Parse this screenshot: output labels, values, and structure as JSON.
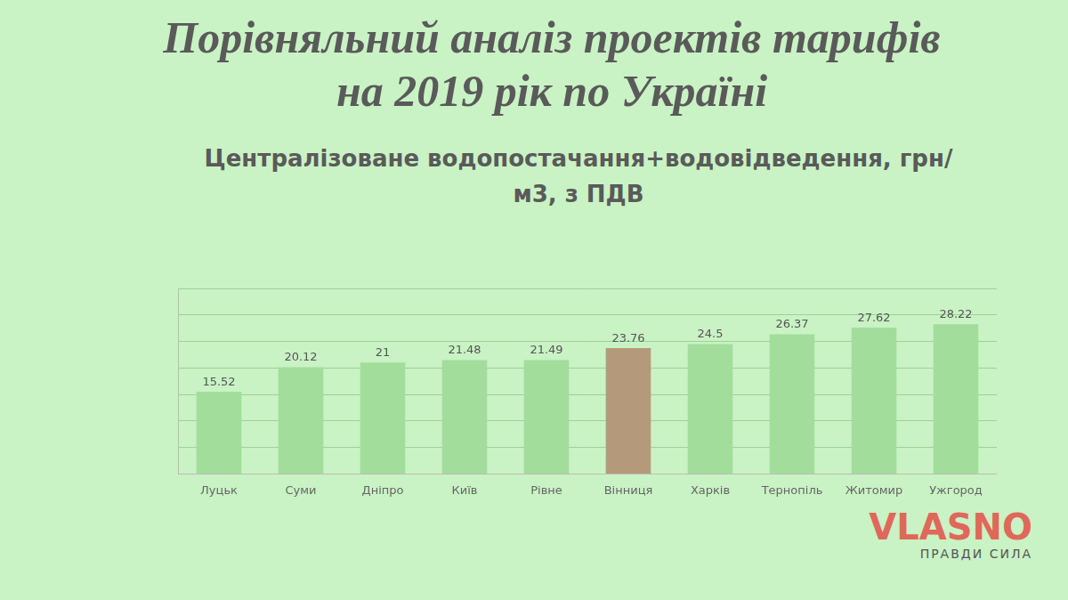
{
  "chart_data": {
    "type": "bar",
    "title": "Порівняльний аналіз проектів тарифів на 2019 рік по Україні",
    "subtitle": "Централізоване водопостачання+водовідведення, грн/м3, з ПДВ",
    "categories": [
      "Луцьк",
      "Суми",
      "Дніпро",
      "Київ",
      "Рівне",
      "Вінниця",
      "Харків",
      "Тернопіль",
      "Житомир",
      "Ужгород"
    ],
    "values": [
      15.52,
      20.12,
      21,
      21.48,
      21.49,
      23.76,
      24.5,
      26.37,
      27.62,
      28.22
    ],
    "colors": [
      "#a3dd9c",
      "#a3dd9c",
      "#a3dd9c",
      "#a3dd9c",
      "#a3dd9c",
      "#b49a7a",
      "#a3dd9c",
      "#a3dd9c",
      "#a3dd9c",
      "#a3dd9c"
    ],
    "ylim": [
      0,
      35
    ],
    "yticks": [
      0,
      5,
      10,
      15,
      20,
      25,
      30,
      35
    ],
    "grid": true,
    "data_labels": true,
    "tick_labels": "x",
    "annotations": [
      "VLASNO",
      "ПРАВДИ СИЛА"
    ]
  }
}
